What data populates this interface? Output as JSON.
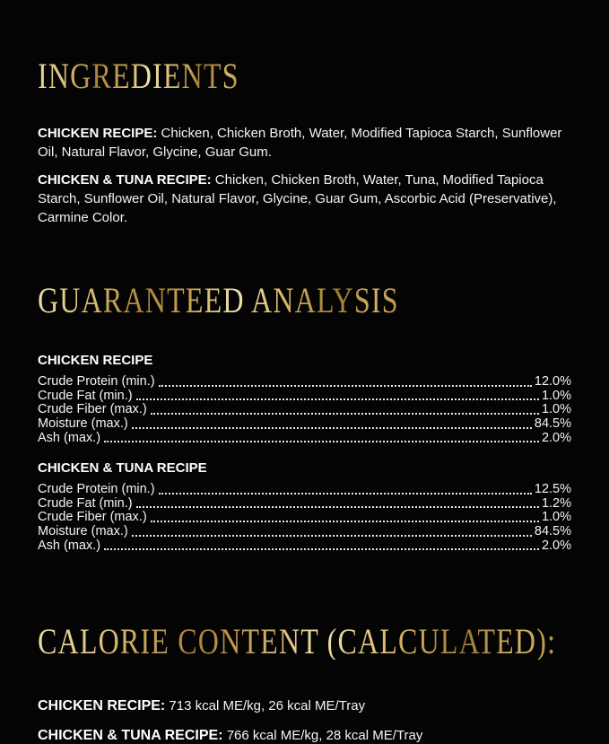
{
  "page": {
    "background_color": "#050404",
    "body_text_color": "#ffffff",
    "accent_gold_color": "#d9bd72",
    "accent_gold_dark_color": "#a8833a"
  },
  "ingredients": {
    "title": "INGREDIENTS",
    "items": [
      {
        "label": "CHICKEN RECIPE:",
        "text": "Chicken, Chicken Broth, Water, Modified Tapioca Starch, Sunflower Oil, Natural Flavor, Glycine, Guar Gum."
      },
      {
        "label": "CHICKEN & TUNA RECIPE:",
        "text": "Chicken, Chicken Broth, Water, Tuna, Modified Tapioca Starch, Sunflower Oil, Natural Flavor, Glycine, Guar Gum, Ascorbic Acid (Preservative), Carmine Color."
      }
    ]
  },
  "guaranteed_analysis": {
    "title": "GUARANTEED ANALYSIS",
    "tables": [
      {
        "subtitle": "CHICKEN RECIPE",
        "rows": [
          {
            "name": "Crude Protein (min.)",
            "value": "12.0%"
          },
          {
            "name": "Crude Fat (min.)",
            "value": "1.0%"
          },
          {
            "name": "Crude Fiber (max.)",
            "value": "1.0%"
          },
          {
            "name": "Moisture (max.)",
            "value": "84.5%"
          },
          {
            "name": "Ash (max.)",
            "value": "2.0%"
          }
        ]
      },
      {
        "subtitle": "CHICKEN & TUNA RECIPE",
        "rows": [
          {
            "name": "Crude Protein (min.)",
            "value": "12.5%"
          },
          {
            "name": "Crude Fat (min.)",
            "value": "1.2%"
          },
          {
            "name": "Crude Fiber (max.)",
            "value": "1.0%"
          },
          {
            "name": "Moisture (max.)",
            "value": "84.5%"
          },
          {
            "name": "Ash (max.)",
            "value": "2.0%"
          }
        ]
      }
    ]
  },
  "calorie_content": {
    "title": "CALORIE CONTENT (CALCULATED):",
    "items": [
      {
        "label": "CHICKEN RECIPE:",
        "text": "713 kcal ME/kg, 26 kcal ME/Tray"
      },
      {
        "label": "CHICKEN & TUNA RECIPE:",
        "text": "766 kcal ME/kg, 28 kcal ME/Tray"
      }
    ]
  }
}
